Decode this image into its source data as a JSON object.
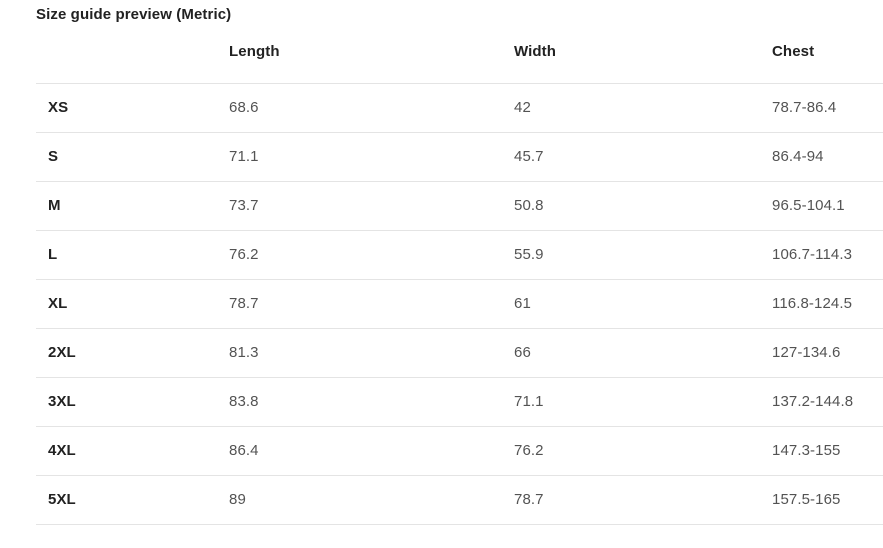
{
  "title": "Size guide preview (Metric)",
  "table": {
    "columns": [
      "",
      "Length",
      "Width",
      "Chest"
    ],
    "rows": [
      {
        "size": "XS",
        "length": "68.6",
        "width": "42",
        "chest": "78.7-86.4"
      },
      {
        "size": "S",
        "length": "71.1",
        "width": "45.7",
        "chest": "86.4-94"
      },
      {
        "size": "M",
        "length": "73.7",
        "width": "50.8",
        "chest": "96.5-104.1"
      },
      {
        "size": "L",
        "length": "76.2",
        "width": "55.9",
        "chest": "106.7-114.3"
      },
      {
        "size": "XL",
        "length": "78.7",
        "width": "61",
        "chest": "116.8-124.5"
      },
      {
        "size": "2XL",
        "length": "81.3",
        "width": "66",
        "chest": "127-134.6"
      },
      {
        "size": "3XL",
        "length": "83.8",
        "width": "71.1",
        "chest": "137.2-144.8"
      },
      {
        "size": "4XL",
        "length": "86.4",
        "width": "76.2",
        "chest": "147.3-155"
      },
      {
        "size": "5XL",
        "length": "89",
        "width": "78.7",
        "chest": "157.5-165"
      }
    ]
  }
}
